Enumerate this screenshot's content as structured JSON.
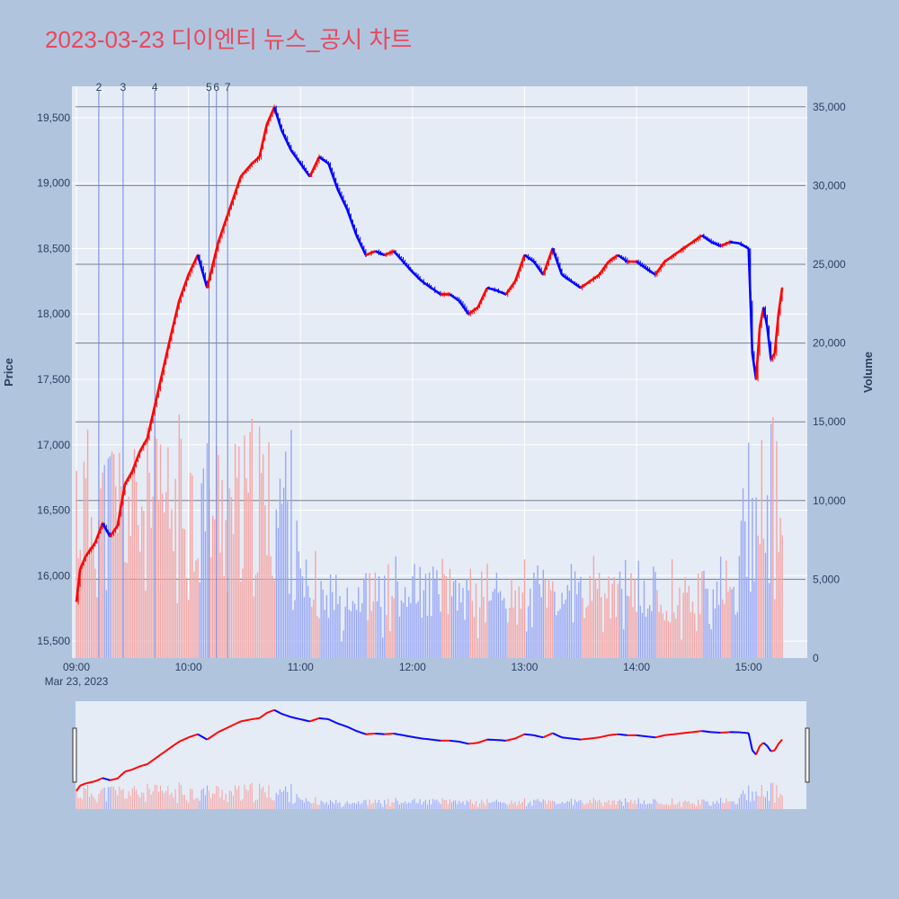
{
  "title": "2023-03-23 디이엔티 뉴스_공시 차트",
  "colors": {
    "up": "#ff0000",
    "down": "#0000ff",
    "up_vol": "#f4a6a6",
    "down_vol": "#9aa8f5",
    "paper": "#b0c4de",
    "plot": "#e5ecf6",
    "title": "#e8485c"
  },
  "chart_data": {
    "type": "candlestick",
    "x_label_date": "Mar 23, 2023",
    "ylabel": "Price",
    "y2label": "Volume",
    "x_ticks": [
      "09:00",
      "10:00",
      "11:00",
      "12:00",
      "13:00",
      "14:00",
      "15:00"
    ],
    "y_ticks": [
      "15,500",
      "16,000",
      "16,500",
      "17,000",
      "17,500",
      "18,000",
      "18,500",
      "19,000",
      "19,500"
    ],
    "y2_ticks": [
      "0",
      "5,000",
      "10,000",
      "15,000",
      "20,000",
      "25,000",
      "30,000",
      "35,000"
    ],
    "price_range": [
      15370,
      19740
    ],
    "volume_range": [
      0,
      36300
    ],
    "time_range": [
      "09:00",
      "15:30"
    ],
    "news_markers": [
      {
        "label": "2",
        "time": "09:12"
      },
      {
        "label": "3",
        "time": "09:25"
      },
      {
        "label": "4",
        "time": "09:42"
      },
      {
        "label": "5",
        "time": "10:11"
      },
      {
        "label": "6",
        "time": "10:15"
      },
      {
        "label": "7",
        "time": "10:21"
      }
    ],
    "price_path": [
      [
        "09:00",
        15800
      ],
      [
        "09:02",
        16050
      ],
      [
        "09:05",
        16150
      ],
      [
        "09:10",
        16250
      ],
      [
        "09:14",
        16400
      ],
      [
        "09:18",
        16300
      ],
      [
        "09:22",
        16380
      ],
      [
        "09:26",
        16700
      ],
      [
        "09:30",
        16800
      ],
      [
        "09:34",
        16950
      ],
      [
        "09:38",
        17050
      ],
      [
        "09:42",
        17300
      ],
      [
        "09:46",
        17550
      ],
      [
        "09:50",
        17800
      ],
      [
        "09:55",
        18100
      ],
      [
        "10:00",
        18300
      ],
      [
        "10:05",
        18450
      ],
      [
        "10:10",
        18200
      ],
      [
        "10:16",
        18550
      ],
      [
        "10:22",
        18800
      ],
      [
        "10:28",
        19050
      ],
      [
        "10:34",
        19150
      ],
      [
        "10:38",
        19200
      ],
      [
        "10:42",
        19450
      ],
      [
        "10:46",
        19580
      ],
      [
        "10:50",
        19400
      ],
      [
        "10:55",
        19250
      ],
      [
        "11:00",
        19150
      ],
      [
        "11:05",
        19050
      ],
      [
        "11:10",
        19200
      ],
      [
        "11:15",
        19150
      ],
      [
        "11:20",
        18950
      ],
      [
        "11:25",
        18800
      ],
      [
        "11:30",
        18600
      ],
      [
        "11:35",
        18450
      ],
      [
        "11:40",
        18480
      ],
      [
        "11:45",
        18450
      ],
      [
        "11:50",
        18480
      ],
      [
        "11:55",
        18400
      ],
      [
        "12:00",
        18320
      ],
      [
        "12:05",
        18250
      ],
      [
        "12:10",
        18200
      ],
      [
        "12:15",
        18150
      ],
      [
        "12:20",
        18150
      ],
      [
        "12:25",
        18100
      ],
      [
        "12:30",
        18000
      ],
      [
        "12:35",
        18050
      ],
      [
        "12:40",
        18200
      ],
      [
        "12:45",
        18180
      ],
      [
        "12:50",
        18150
      ],
      [
        "12:55",
        18250
      ],
      [
        "13:00",
        18450
      ],
      [
        "13:05",
        18400
      ],
      [
        "13:10",
        18300
      ],
      [
        "13:15",
        18500
      ],
      [
        "13:20",
        18300
      ],
      [
        "13:25",
        18250
      ],
      [
        "13:30",
        18200
      ],
      [
        "13:35",
        18250
      ],
      [
        "13:40",
        18300
      ],
      [
        "13:45",
        18400
      ],
      [
        "13:50",
        18450
      ],
      [
        "13:55",
        18400
      ],
      [
        "14:00",
        18400
      ],
      [
        "14:05",
        18350
      ],
      [
        "14:10",
        18300
      ],
      [
        "14:15",
        18400
      ],
      [
        "14:20",
        18450
      ],
      [
        "14:25",
        18500
      ],
      [
        "14:30",
        18550
      ],
      [
        "14:35",
        18600
      ],
      [
        "14:40",
        18550
      ],
      [
        "14:45",
        18520
      ],
      [
        "14:50",
        18550
      ],
      [
        "14:55",
        18540
      ],
      [
        "15:00",
        18500
      ],
      [
        "15:02",
        17700
      ],
      [
        "15:04",
        17500
      ],
      [
        "15:06",
        17900
      ],
      [
        "15:08",
        18050
      ],
      [
        "15:10",
        17900
      ],
      [
        "15:12",
        17650
      ],
      [
        "15:14",
        17700
      ],
      [
        "15:16",
        18000
      ],
      [
        "15:18",
        18200
      ]
    ]
  }
}
